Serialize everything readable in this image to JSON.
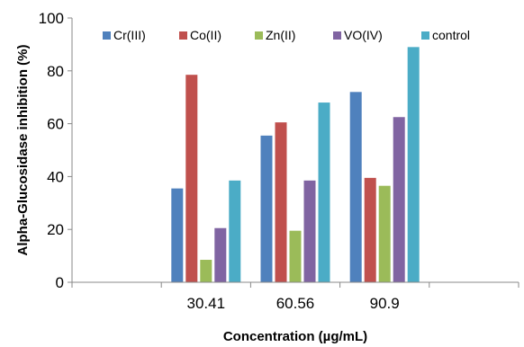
{
  "chart_data": {
    "type": "bar",
    "title": "",
    "xlabel": "Concentration (µg/mL)",
    "ylabel": "Alpha-Glucosidase inhibition (%)",
    "ylim": [
      0,
      100
    ],
    "yticks": [
      0,
      20,
      40,
      60,
      80,
      100
    ],
    "categories": [
      "",
      "30.41",
      "60.56",
      "90.9",
      ""
    ],
    "legend_position": "top",
    "grid": false,
    "series": [
      {
        "name": "Cr(III)",
        "color": "#4F81BD",
        "values": [
          null,
          35.5,
          55.5,
          72,
          null
        ]
      },
      {
        "name": "Co(II)",
        "color": "#C0504D",
        "values": [
          null,
          78.5,
          60.5,
          39.5,
          null
        ]
      },
      {
        "name": "Zn(II)",
        "color": "#9BBB59",
        "values": [
          null,
          8.5,
          19.5,
          36.5,
          null
        ]
      },
      {
        "name": "VO(IV)",
        "color": "#8064A2",
        "values": [
          null,
          20.5,
          38.5,
          62.5,
          null
        ]
      },
      {
        "name": "control",
        "color": "#4BACC6",
        "values": [
          null,
          38.5,
          68,
          89,
          null
        ]
      }
    ]
  }
}
